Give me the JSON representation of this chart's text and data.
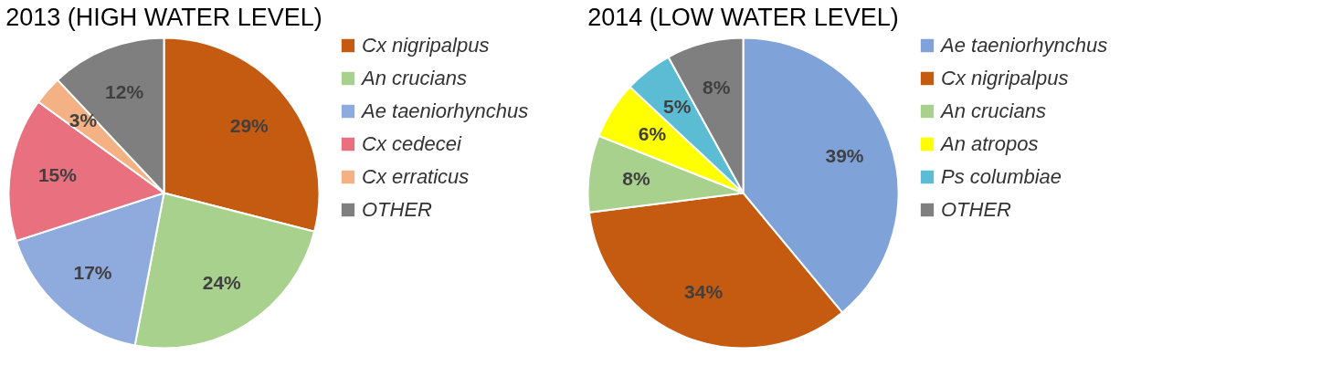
{
  "chart_data": [
    {
      "type": "pie",
      "title": "2013 (HIGH WATER LEVEL)",
      "categories": [
        "Cx nigripalpus",
        "An crucians",
        "Ae taeniorhynchus",
        "Cx cedecei",
        "Cx erraticus",
        "OTHER"
      ],
      "values": [
        29,
        24,
        17,
        15,
        3,
        12
      ],
      "colors": [
        "#c55a11",
        "#a9d18e",
        "#8faadc",
        "#e9717f",
        "#f4b183",
        "#7f7f7f"
      ],
      "value_labels": [
        "29%",
        "24%",
        "17%",
        "15%",
        "3%",
        "12%"
      ],
      "legend": "right"
    },
    {
      "type": "pie",
      "title": "2014 (LOW WATER LEVEL)",
      "categories": [
        "Ae taeniorhynchus",
        "Cx nigripalpus",
        "An crucians",
        "An atropos",
        "Ps columbiae",
        "OTHER"
      ],
      "values": [
        39,
        34,
        8,
        6,
        5,
        8
      ],
      "colors": [
        "#7fa2d8",
        "#c55a11",
        "#a9d18e",
        "#ffff00",
        "#5bbcd4",
        "#7f7f7f"
      ],
      "value_labels": [
        "39%",
        "34%",
        "8%",
        "6%",
        "5%",
        "8%"
      ],
      "legend": "right"
    }
  ]
}
